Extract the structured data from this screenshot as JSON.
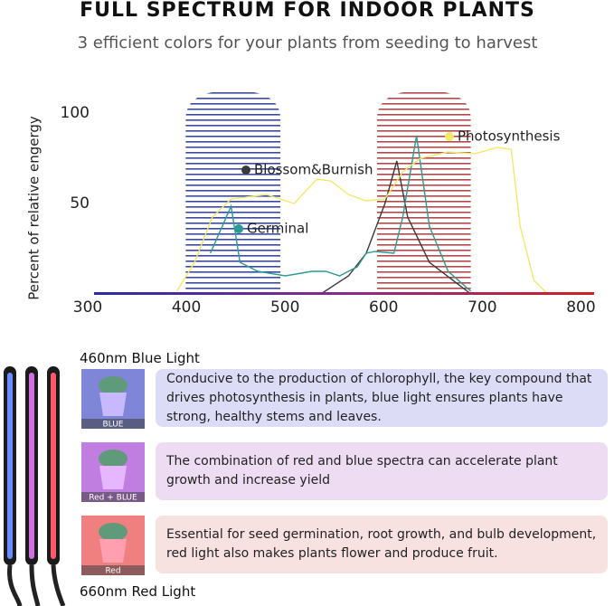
{
  "header": {
    "title": "FULL SPECTRUM FOR INDOOR PLANTS",
    "subtitle": "3 efficient colors for your plants from seeding to harvest"
  },
  "chart_data": {
    "type": "line",
    "y_label": "Percent of relative engergy",
    "xlim": [
      300,
      806
    ],
    "ylim": [
      0,
      106
    ],
    "xticks": [
      300,
      400,
      500,
      600,
      700,
      800
    ],
    "yticks": [
      50,
      100
    ],
    "bands": [
      {
        "xrange": [
          392,
          488
        ],
        "color": "#3b4a9c"
      },
      {
        "xrange": [
          586,
          681
        ],
        "color": "#b04a4a"
      }
    ],
    "series": [
      {
        "name": "Blossom&Burnish",
        "color": "#3a3a3a",
        "x": [
          529,
          557,
          575,
          594,
          606,
          617,
          639,
          681
        ],
        "values": [
          0,
          10,
          22.5,
          50,
          73.5,
          42.5,
          17.5,
          0
        ]
      },
      {
        "name": "Germinal",
        "color": "#2a9a94",
        "x": [
          417,
          438,
          447,
          465,
          493,
          520,
          534,
          548,
          566,
          575,
          584,
          603,
          612,
          626,
          639,
          658,
          681
        ],
        "values": [
          22.5,
          48.5,
          17.5,
          12.5,
          10,
          12.5,
          12.5,
          10,
          15,
          22.5,
          23.5,
          22.5,
          42.5,
          87.5,
          37.5,
          12.5,
          1.5
        ]
      },
      {
        "name": "Photosynthesis",
        "color": "#f2e86a",
        "x": [
          383,
          401,
          419,
          438,
          474,
          502,
          525,
          539,
          557,
          575,
          594,
          612,
          630,
          658,
          685,
          708,
          722,
          731,
          745,
          759
        ],
        "values": [
          1.5,
          17.5,
          42.5,
          52.5,
          55,
          50,
          63.5,
          62.5,
          55,
          51.5,
          52.5,
          67.5,
          75,
          78.5,
          77.5,
          81,
          80,
          37.5,
          7.5,
          0
        ]
      }
    ]
  },
  "lights": {
    "top_label": "460nm Blue Light",
    "bottom_label": "660nm Red Light",
    "rows": [
      {
        "tag": "BLUE",
        "text": "Conducive to the production of chlorophyll, the key compound that drives photosynthesis in plants, blue light ensures plants have strong, healthy stems and leaves."
      },
      {
        "tag": "Red + BLUE",
        "text": "The combination of red and blue spectra can accelerate plant growth and increase yield"
      },
      {
        "tag": "Red",
        "text": "Essential for seed germination, root growth, and bulb development, red light also makes plants flower and produce fruit."
      }
    ]
  }
}
